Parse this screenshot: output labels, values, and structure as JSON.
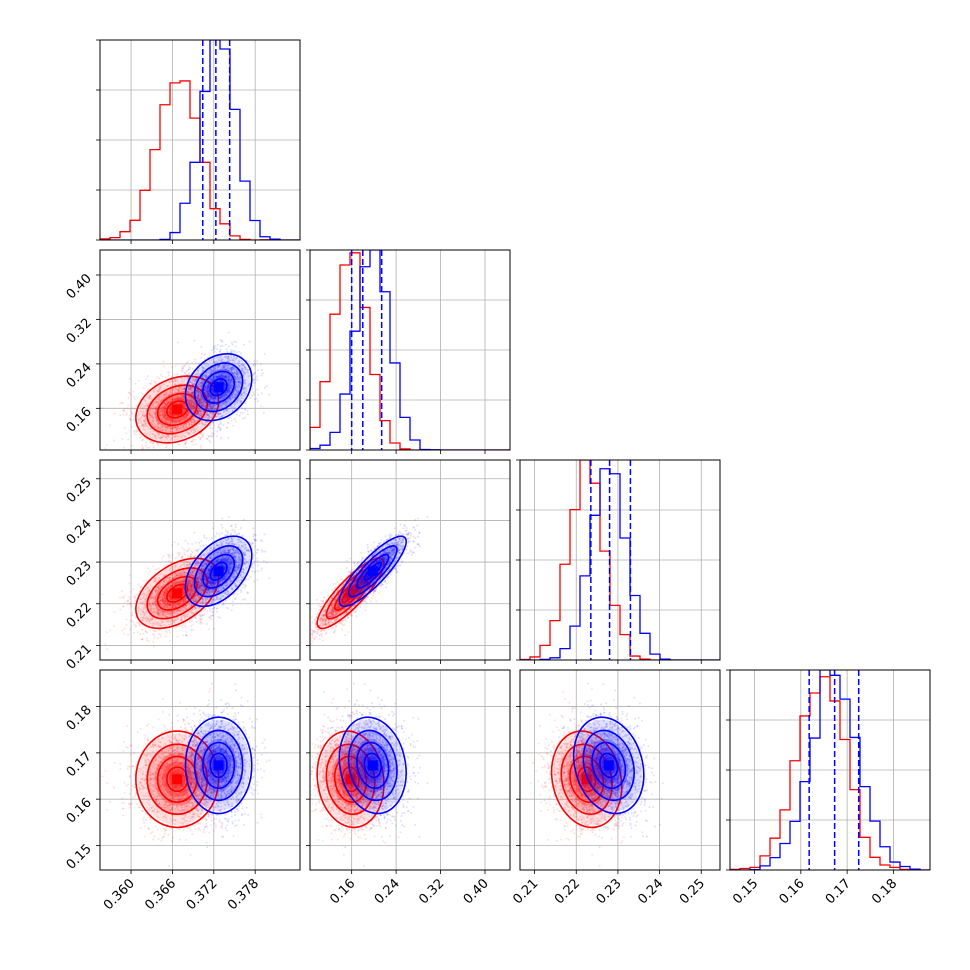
{
  "chart_data": {
    "type": "corner",
    "colors": {
      "a": "#ff0000",
      "b": "#0000ff",
      "quantile": "#0000ff"
    },
    "grid": true,
    "series": [
      {
        "key": "a",
        "color": "#ff0000"
      },
      {
        "key": "b",
        "color": "#0000ff"
      }
    ],
    "params": [
      {
        "range": [
          0.3555,
          0.3845
        ],
        "ticks": [
          0.36,
          0.366,
          0.372,
          0.378
        ],
        "tick_labels": [
          "0.360",
          "0.366",
          "0.372",
          "0.378"
        ]
      },
      {
        "range": [
          0.085,
          0.445
        ],
        "ticks": [
          0.16,
          0.24,
          0.32,
          0.4
        ],
        "tick_labels": [
          "0.16",
          "0.24",
          "0.32",
          "0.40"
        ]
      },
      {
        "range": [
          0.2065,
          0.2545
        ],
        "ticks": [
          0.21,
          0.22,
          0.23,
          0.24,
          0.25
        ],
        "tick_labels": [
          "0.21",
          "0.22",
          "0.23",
          "0.24",
          "0.25"
        ]
      },
      {
        "range": [
          0.1447,
          0.1879
        ],
        "ticks": [
          0.15,
          0.16,
          0.17,
          0.18
        ],
        "tick_labels": [
          "0.15",
          "0.16",
          "0.17",
          "0.18"
        ]
      }
    ],
    "posterior": {
      "a": {
        "mean": [
          0.3667,
          0.158,
          0.2225,
          0.1643
        ],
        "sd": [
          0.003,
          0.03,
          0.0042,
          0.0052
        ],
        "corr": [
          [
            1,
            0.25,
            0.45,
            0.0
          ],
          [
            0.25,
            1,
            0.85,
            -0.1
          ],
          [
            0.45,
            0.85,
            1,
            -0.15
          ],
          [
            0.0,
            -0.1,
            -0.15,
            1
          ]
        ]
      },
      "b": {
        "mean": [
          0.3727,
          0.198,
          0.2278,
          0.1673
        ],
        "sd": [
          0.0024,
          0.03,
          0.0042,
          0.0052
        ],
        "corr": [
          [
            1,
            0.25,
            0.45,
            0.0
          ],
          [
            0.25,
            1,
            0.85,
            -0.15
          ],
          [
            0.45,
            0.85,
            1,
            -0.2
          ],
          [
            0.0,
            -0.15,
            -0.2,
            1
          ]
        ]
      }
    },
    "quantile_lines": [
      [
        0.3704,
        0.3723,
        0.3743
      ],
      [
        0.16,
        0.18,
        0.214
      ],
      [
        0.2235,
        0.228,
        0.233
      ],
      [
        0.1618,
        0.1673,
        0.1725
      ]
    ]
  }
}
